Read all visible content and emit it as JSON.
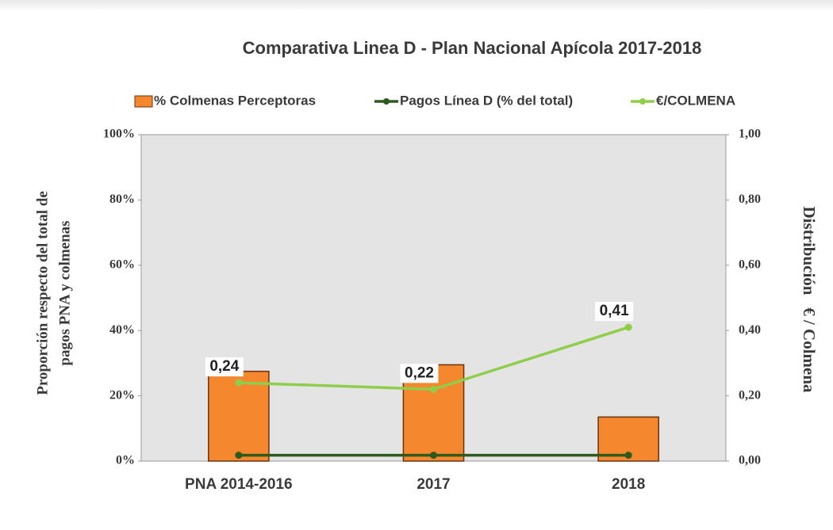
{
  "chart_data": {
    "type": "bar",
    "title": "Comparativa Linea D - Plan Nacional Apícola  2017-2018",
    "y_label": [
      "Proporción respecto del total de",
      "pagos PNA y colmenas"
    ],
    "y2_label": "Distribución   € / Colmena",
    "categories": [
      "PNA 2014-2016",
      "2017",
      "2018"
    ],
    "series": [
      {
        "name": "% Colmenas Perceptoras",
        "type": "bar",
        "color": "#f5872f",
        "values": [
          27.5,
          29.5,
          13.5
        ]
      },
      {
        "name": "Pagos Línea D (% del total)",
        "type": "line",
        "color": "#2e5a1c",
        "values": [
          1.8,
          1.8,
          1.8
        ]
      },
      {
        "name": "€/COLMENA",
        "type": "line",
        "color": "#8fce4a",
        "axis": "y2",
        "values": [
          0.24,
          0.22,
          0.41
        ],
        "value_labels": [
          "0,24",
          "0,22",
          "0,41"
        ]
      }
    ],
    "ylim": [
      0,
      100
    ],
    "yticks": [
      {
        "value": 0,
        "label": "0%"
      },
      {
        "value": 20,
        "label": "20%"
      },
      {
        "value": 40,
        "label": "40%"
      },
      {
        "value": 60,
        "label": "60%"
      },
      {
        "value": 80,
        "label": "80%"
      },
      {
        "value": 100,
        "label": "100%"
      }
    ],
    "y2lim": [
      0,
      1
    ],
    "y2ticks": [
      {
        "value": 0,
        "label": "0,00"
      },
      {
        "value": 0.2,
        "label": "0,20"
      },
      {
        "value": 0.4,
        "label": "0,40"
      },
      {
        "value": 0.6,
        "label": "0,60"
      },
      {
        "value": 0.8,
        "label": "0,80"
      },
      {
        "value": 1,
        "label": "1,00"
      }
    ],
    "legend": "top"
  }
}
